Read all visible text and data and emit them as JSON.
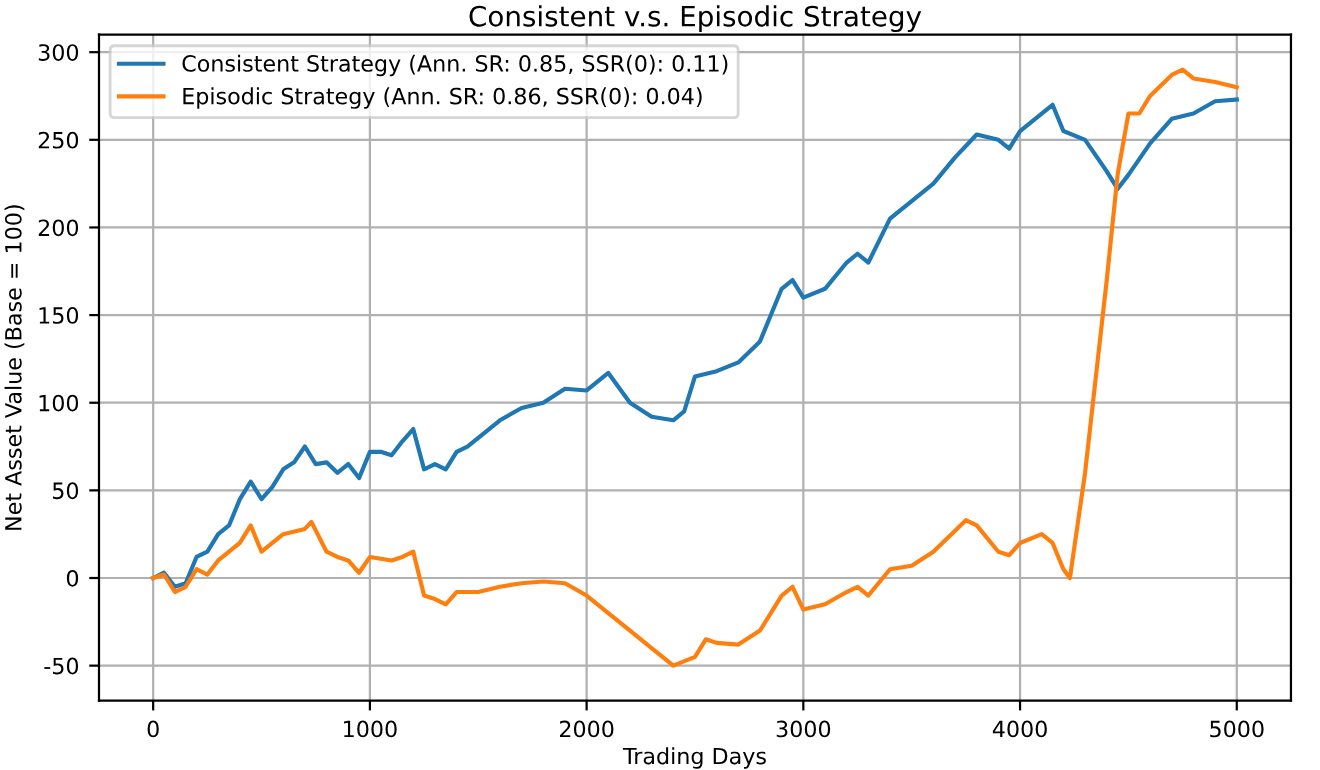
{
  "chart_data": {
    "type": "line",
    "title": "Consistent v.s. Episodic Strategy",
    "xlabel": "Trading Days",
    "ylabel": "Net Asset Value (Base = 100)",
    "xlim": [
      -250,
      5250
    ],
    "ylim": [
      -70,
      310
    ],
    "xticks": [
      0,
      1000,
      2000,
      3000,
      4000,
      5000
    ],
    "yticks": [
      -50,
      0,
      50,
      100,
      150,
      200,
      250,
      300
    ],
    "grid": true,
    "legend": "top left",
    "series": [
      {
        "name": "Consistent Strategy (Ann. SR: 0.85, SSR(0): 0.11)",
        "color": "#1f77b4",
        "x": [
          0,
          50,
          100,
          150,
          200,
          250,
          300,
          350,
          400,
          450,
          500,
          550,
          600,
          650,
          700,
          750,
          800,
          850,
          900,
          950,
          1000,
          1050,
          1100,
          1150,
          1200,
          1250,
          1300,
          1350,
          1400,
          1450,
          1500,
          1600,
          1700,
          1800,
          1900,
          2000,
          2100,
          2200,
          2300,
          2400,
          2450,
          2500,
          2600,
          2700,
          2800,
          2900,
          2950,
          3000,
          3100,
          3200,
          3250,
          3300,
          3400,
          3500,
          3600,
          3700,
          3800,
          3900,
          3950,
          4000,
          4100,
          4150,
          4200,
          4300,
          4400,
          4450,
          4500,
          4600,
          4700,
          4800,
          4900,
          5000
        ],
        "values": [
          0,
          3,
          -5,
          -3,
          12,
          15,
          25,
          30,
          45,
          55,
          45,
          52,
          62,
          66,
          75,
          65,
          66,
          60,
          65,
          57,
          72,
          72,
          70,
          78,
          85,
          62,
          65,
          62,
          72,
          75,
          80,
          90,
          97,
          100,
          108,
          107,
          117,
          100,
          92,
          90,
          95,
          115,
          118,
          123,
          135,
          165,
          170,
          160,
          165,
          180,
          185,
          180,
          205,
          215,
          225,
          240,
          253,
          250,
          245,
          255,
          265,
          270,
          255,
          250,
          232,
          222,
          230,
          248,
          262,
          265,
          272,
          273
        ]
      },
      {
        "name": "Episodic Strategy (Ann. SR: 0.86, SSR(0): 0.04)",
        "color": "#ff7f0e",
        "x": [
          0,
          50,
          100,
          150,
          200,
          250,
          300,
          350,
          400,
          450,
          500,
          550,
          600,
          700,
          730,
          800,
          850,
          900,
          950,
          1000,
          1100,
          1150,
          1200,
          1250,
          1300,
          1350,
          1400,
          1500,
          1600,
          1700,
          1800,
          1900,
          2000,
          2050,
          2100,
          2200,
          2300,
          2400,
          2500,
          2550,
          2600,
          2700,
          2800,
          2900,
          2950,
          3000,
          3100,
          3200,
          3250,
          3300,
          3400,
          3500,
          3600,
          3700,
          3750,
          3800,
          3900,
          3950,
          4000,
          4100,
          4150,
          4200,
          4230,
          4300,
          4400,
          4450,
          4500,
          4550,
          4600,
          4700,
          4750,
          4800,
          4900,
          5000
        ],
        "values": [
          0,
          2,
          -8,
          -5,
          5,
          2,
          10,
          15,
          20,
          30,
          15,
          20,
          25,
          28,
          32,
          15,
          12,
          10,
          3,
          12,
          10,
          12,
          15,
          -10,
          -12,
          -15,
          -8,
          -8,
          -5,
          -3,
          -2,
          -3,
          -10,
          -15,
          -20,
          -30,
          -40,
          -50,
          -45,
          -35,
          -37,
          -38,
          -30,
          -10,
          -5,
          -18,
          -15,
          -8,
          -5,
          -10,
          5,
          7,
          15,
          27,
          33,
          30,
          15,
          13,
          20,
          25,
          20,
          5,
          0,
          60,
          170,
          230,
          265,
          265,
          275,
          287,
          290,
          285,
          283,
          280
        ]
      }
    ]
  }
}
